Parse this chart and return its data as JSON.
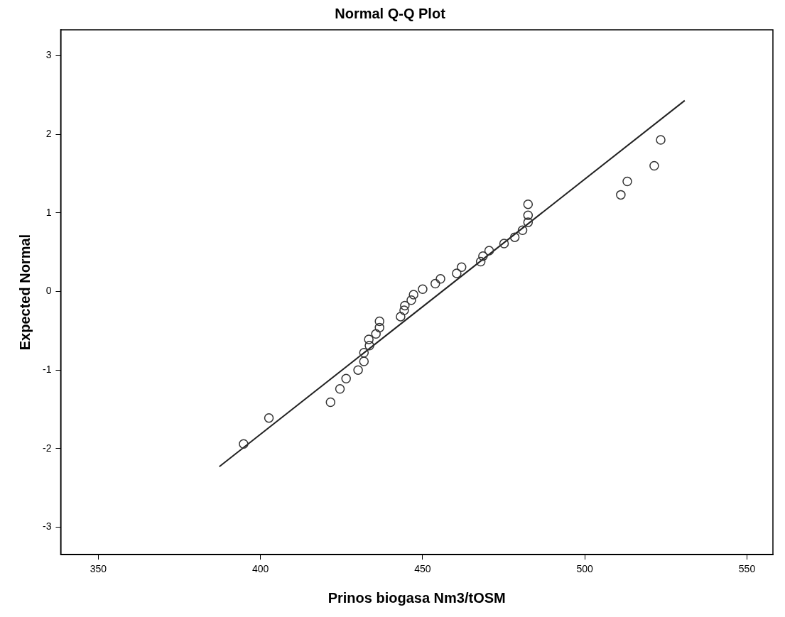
{
  "chart_data": {
    "type": "scatter",
    "title": "Normal Q-Q Plot",
    "xlabel": "Prinos biogasa Nm3/tOSM",
    "ylabel": "Expected Normal",
    "xlim": [
      338.4,
      558
    ],
    "xticks": [
      350,
      400,
      450,
      500,
      550
    ],
    "ylim": [
      -3.35,
      3.33
    ],
    "yticks": [
      -3,
      -2,
      -1,
      0,
      1,
      2,
      3
    ],
    "grid": false,
    "legend": false,
    "marker": "circle",
    "series": [
      {
        "color": "#333333",
        "x": [
          394.8,
          402.6,
          421.6,
          424.5,
          426.4,
          430.1,
          431.9,
          431.9,
          433.6,
          433.4,
          435.6,
          436.7,
          436.7,
          443.2,
          444.3,
          444.5,
          446.5,
          447.2,
          450.0,
          453.9,
          455.5,
          460.5,
          462.0,
          467.9,
          468.6,
          470.5,
          475.1,
          478.4,
          480.8,
          482.5,
          482.5,
          482.5,
          511.1,
          513.1,
          521.4,
          523.4
        ],
        "values": [
          -1.94,
          -1.61,
          -1.41,
          -1.24,
          -1.11,
          -1.0,
          -0.89,
          -0.78,
          -0.69,
          -0.61,
          -0.54,
          -0.46,
          -0.38,
          -0.32,
          -0.24,
          -0.18,
          -0.11,
          -0.04,
          0.03,
          0.1,
          0.16,
          0.23,
          0.31,
          0.38,
          0.45,
          0.52,
          0.61,
          0.69,
          0.78,
          0.88,
          0.97,
          1.11,
          1.23,
          1.4,
          1.6,
          1.93
        ]
      },
      {
        "type": "line",
        "color": "#222222",
        "line_style": "solid",
        "marker": "none",
        "x": [
          387.3,
          530.8
        ],
        "values": [
          -2.23,
          2.43
        ]
      }
    ]
  }
}
